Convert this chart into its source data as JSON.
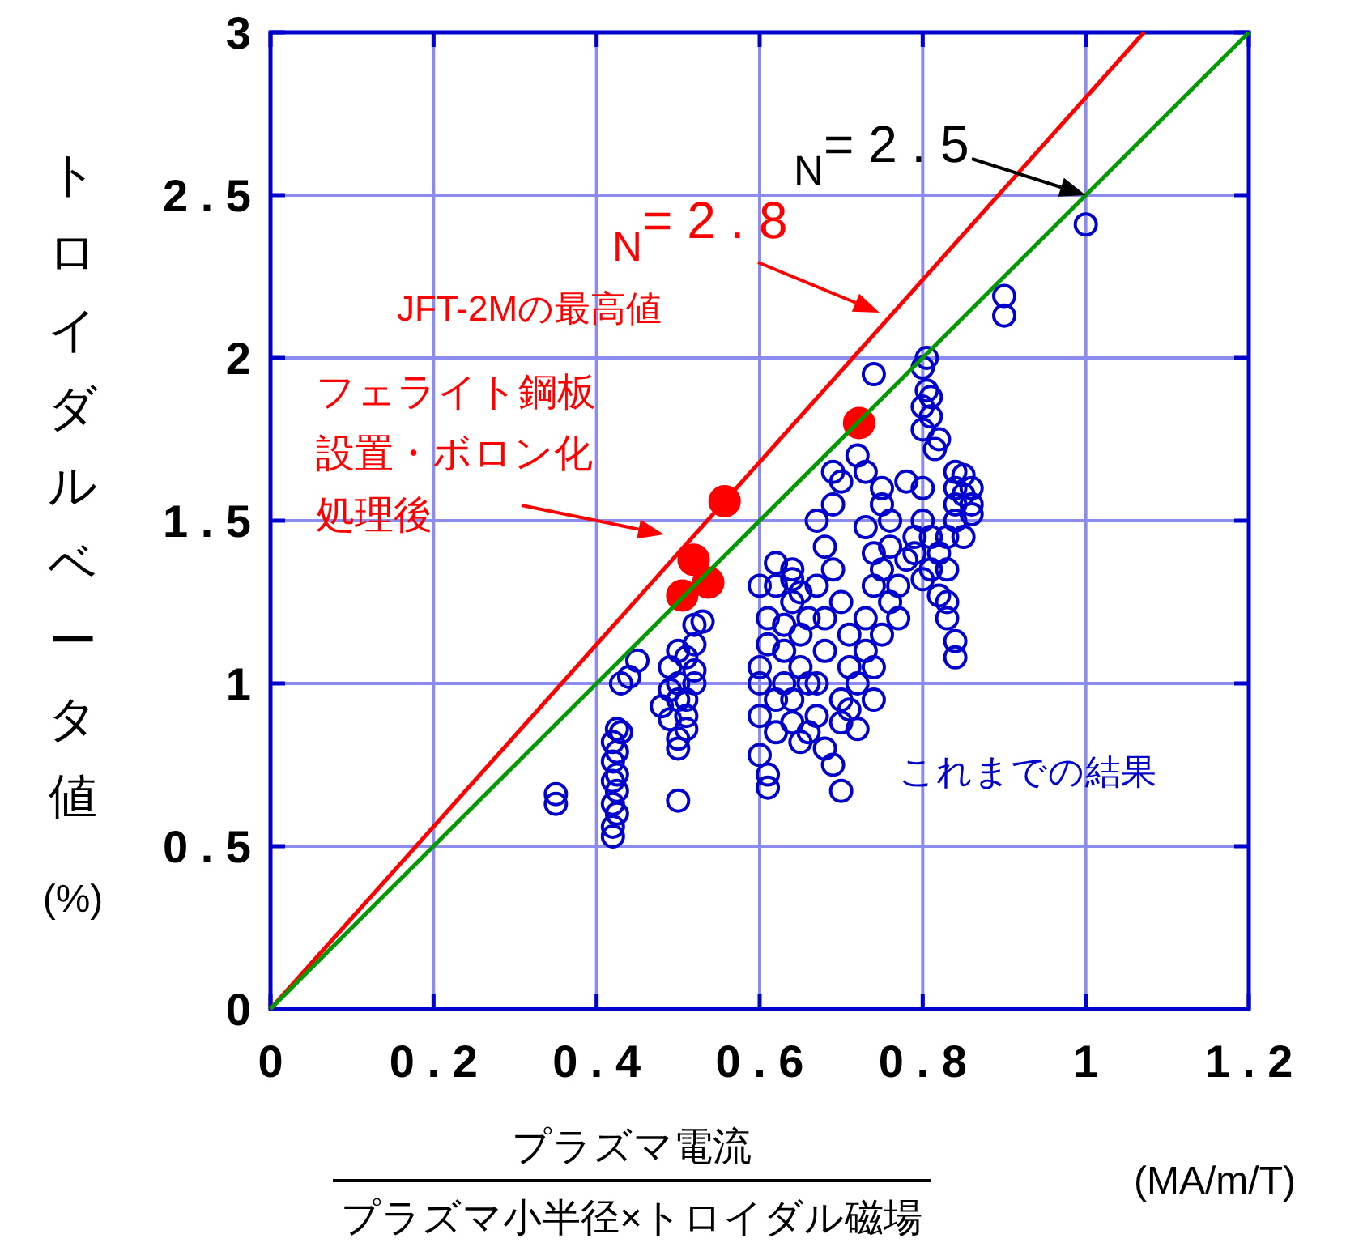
{
  "chart_data": {
    "type": "scatter",
    "xlabel": "プラズマ電流",
    "ylabel": "トロイダルベータ値(%)",
    "xlim": [
      0,
      1.2
    ],
    "ylim": [
      0,
      3
    ],
    "xticks": [
      0,
      {
        "value": 0.2,
        "label": "0 . 2"
      },
      {
        "value": 0.4,
        "label": "0 . 4"
      },
      {
        "value": 0.6,
        "label": "0 . 6"
      },
      {
        "value": 0.8,
        "label": "0 . 8"
      },
      1,
      {
        "value": 1.2,
        "label": "1 . 2"
      }
    ],
    "yticks": [
      0,
      {
        "value": 0.5,
        "label": "0 . 5"
      },
      1,
      {
        "value": 1.5,
        "label": "1 . 5"
      },
      2,
      {
        "value": 2.5,
        "label": "2 . 5"
      },
      3
    ],
    "grid": true,
    "series": [
      {
        "marker": "circle",
        "color": "#0000cc",
        "x": [
          0.35,
          0.35,
          0.42,
          0.42,
          0.425,
          0.42,
          0.425,
          0.42,
          0.425,
          0.42,
          0.425,
          0.42,
          0.43,
          0.425,
          0.43,
          0.44,
          0.45,
          0.48,
          0.49,
          0.49,
          0.5,
          0.49,
          0.5,
          0.5,
          0.51,
          0.51,
          0.51,
          0.52,
          0.52,
          0.51,
          0.52,
          0.52,
          0.53,
          0.5,
          0.5,
          0.5,
          0.6,
          0.61,
          0.61,
          0.6,
          0.6,
          0.6,
          0.61,
          0.61,
          0.6,
          0.62,
          0.62,
          0.62,
          0.63,
          0.63,
          0.63,
          0.64,
          0.64,
          0.64,
          0.65,
          0.65,
          0.65,
          0.64,
          0.64,
          0.65,
          0.62,
          0.66,
          0.66,
          0.66,
          0.67,
          0.67,
          0.68,
          0.68,
          0.67,
          0.68,
          0.67,
          0.69,
          0.69,
          0.7,
          0.68,
          0.69,
          0.7,
          0.7,
          0.7,
          0.71,
          0.69,
          0.7,
          0.71,
          0.71,
          0.72,
          0.72,
          0.73,
          0.73,
          0.74,
          0.74,
          0.73,
          0.75,
          0.75,
          0.76,
          0.76,
          0.75,
          0.76,
          0.74,
          0.74,
          0.75,
          0.77,
          0.77,
          0.78,
          0.74,
          0.73,
          0.72,
          0.79,
          0.8,
          0.79,
          0.81,
          0.8,
          0.8,
          0.805,
          0.8,
          0.805,
          0.8,
          0.81,
          0.8,
          0.82,
          0.815,
          0.81,
          0.78,
          0.82,
          0.82,
          0.81,
          0.83,
          0.83,
          0.84,
          0.84,
          0.84,
          0.85,
          0.85,
          0.86,
          0.86,
          0.84,
          0.83,
          0.83,
          0.84,
          0.84,
          0.86,
          0.85,
          0.9,
          0.9,
          1.0
        ],
        "values": [
          0.66,
          0.63,
          0.53,
          0.56,
          0.6,
          0.63,
          0.67,
          0.7,
          0.72,
          0.76,
          0.79,
          0.82,
          0.85,
          0.86,
          1.0,
          1.02,
          1.07,
          0.93,
          0.98,
          1.05,
          1.1,
          0.89,
          0.83,
          0.8,
          0.86,
          0.9,
          0.95,
          1.0,
          1.04,
          1.08,
          1.12,
          1.18,
          1.19,
          0.64,
          1.0,
          0.95,
          0.78,
          0.72,
          0.68,
          0.9,
          1.0,
          1.05,
          1.12,
          1.2,
          1.3,
          1.37,
          0.85,
          0.95,
          1.0,
          1.1,
          1.18,
          1.25,
          1.32,
          1.35,
          1.28,
          1.15,
          1.05,
          0.95,
          0.88,
          0.82,
          1.3,
          1.2,
          1.0,
          0.85,
          0.9,
          1.0,
          1.1,
          1.2,
          1.3,
          1.42,
          1.5,
          1.55,
          1.65,
          1.62,
          0.8,
          0.75,
          0.67,
          0.88,
          0.95,
          1.05,
          1.35,
          1.25,
          1.15,
          0.92,
          0.86,
          1.0,
          1.1,
          1.2,
          1.3,
          1.4,
          1.48,
          1.55,
          1.6,
          1.5,
          1.42,
          1.35,
          1.25,
          1.05,
          0.95,
          1.15,
          1.2,
          1.3,
          1.38,
          1.95,
          1.65,
          1.7,
          1.45,
          1.5,
          1.4,
          1.35,
          1.32,
          1.6,
          2.0,
          1.97,
          1.9,
          1.85,
          1.82,
          1.78,
          1.75,
          1.72,
          1.88,
          1.62,
          1.27,
          1.4,
          1.45,
          1.35,
          1.45,
          1.5,
          1.55,
          1.6,
          1.64,
          1.58,
          1.52,
          1.6,
          1.65,
          1.25,
          1.2,
          1.13,
          1.08,
          1.55,
          1.45,
          2.19,
          2.13,
          2.41
        ]
      },
      {
        "marker": "circle",
        "color": "#ff0000",
        "x": [
          0.505,
          0.519,
          0.537,
          0.557,
          0.722
        ],
        "values": [
          1.27,
          1.38,
          1.31,
          1.56,
          1.8
        ]
      },
      {
        "type": "line",
        "color": "#ff0000",
        "x": [
          0,
          1.0714
        ],
        "values": [
          0,
          3
        ]
      },
      {
        "type": "line",
        "color": "#009900",
        "x": [
          0,
          1.2
        ],
        "values": [
          0,
          3
        ]
      }
    ],
    "annotations": [
      {
        "text": "$_{N}$= 2 . 5",
        "x": 1.0,
        "y": 2.5
      },
      "$_{N}$= 2 . 8",
      "JFT-2Mの最高値",
      "フェライト鋼板",
      "設置・ボロン化",
      "処理後",
      "これまでの結果",
      "プラズマ小半径×トロイダル磁場",
      "(MA/m/T)"
    ]
  }
}
